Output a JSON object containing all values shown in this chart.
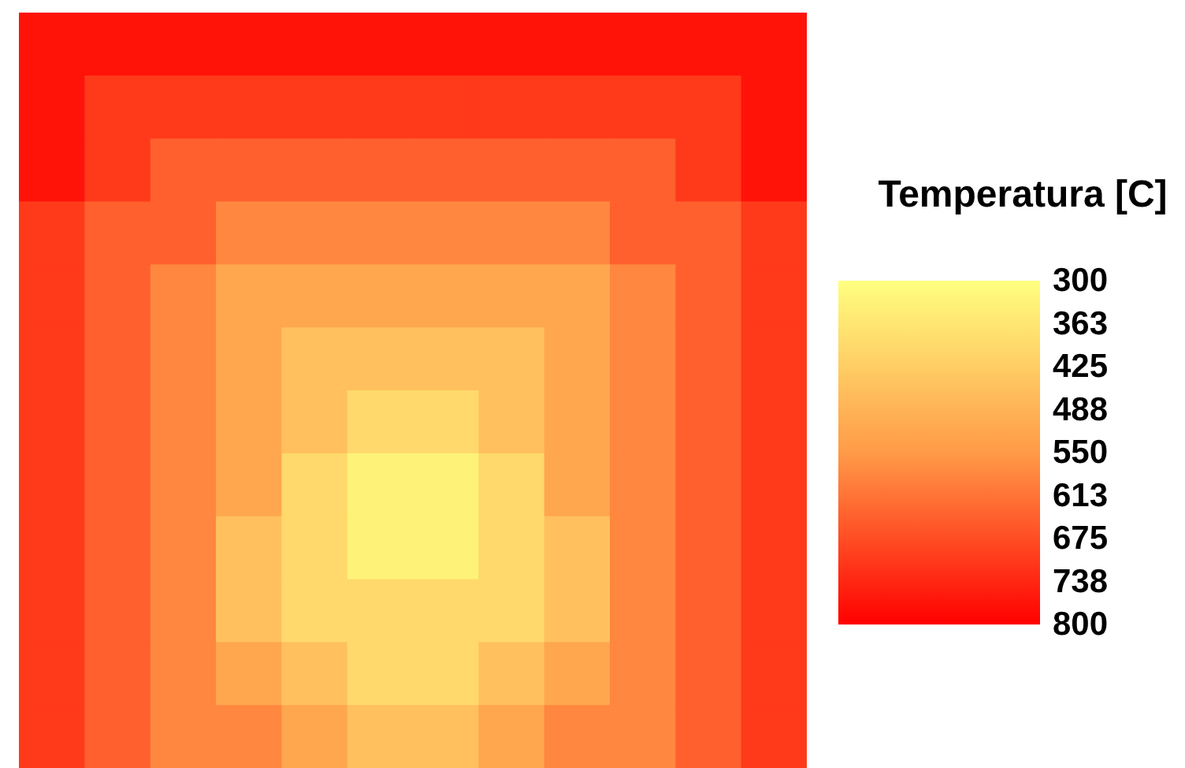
{
  "chart_data": {
    "type": "heatmap",
    "clabel": "Temperatura [C]",
    "tick_labels": false,
    "categories": [
      null,
      null,
      null,
      null,
      null,
      null,
      null,
      null,
      null,
      null,
      null,
      null
    ],
    "y_categories": [
      null,
      null,
      null,
      null,
      null,
      null,
      null,
      null,
      null,
      null,
      null,
      null
    ],
    "clim": [
      300,
      800
    ],
    "cticks": [
      300,
      363,
      425,
      488,
      550,
      613,
      675,
      738,
      800
    ],
    "cells": [
      [
        769,
        769,
        769,
        769,
        769,
        769,
        769,
        769,
        769,
        769,
        769,
        769
      ],
      [
        769,
        706,
        706,
        706,
        706,
        706,
        706,
        706,
        706,
        706,
        706,
        769
      ],
      [
        769,
        706,
        644,
        644,
        644,
        644,
        644,
        644,
        644,
        644,
        706,
        769
      ],
      [
        706,
        644,
        644,
        581,
        581,
        581,
        581,
        581,
        581,
        644,
        644,
        706
      ],
      [
        706,
        644,
        581,
        519,
        519,
        519,
        519,
        519,
        519,
        581,
        644,
        706
      ],
      [
        706,
        644,
        581,
        519,
        456,
        456,
        456,
        456,
        519,
        581,
        644,
        706
      ],
      [
        706,
        644,
        581,
        519,
        456,
        394,
        394,
        456,
        519,
        581,
        644,
        706
      ],
      [
        706,
        644,
        581,
        519,
        394,
        331,
        331,
        394,
        519,
        581,
        644,
        706
      ],
      [
        706,
        644,
        581,
        456,
        394,
        331,
        331,
        394,
        456,
        581,
        644,
        706
      ],
      [
        706,
        644,
        581,
        456,
        394,
        394,
        394,
        394,
        456,
        581,
        644,
        706
      ],
      [
        706,
        644,
        581,
        519,
        456,
        394,
        394,
        456,
        519,
        581,
        644,
        706
      ],
      [
        706,
        644,
        581,
        581,
        519,
        456,
        456,
        519,
        581,
        581,
        644,
        706
      ]
    ]
  }
}
